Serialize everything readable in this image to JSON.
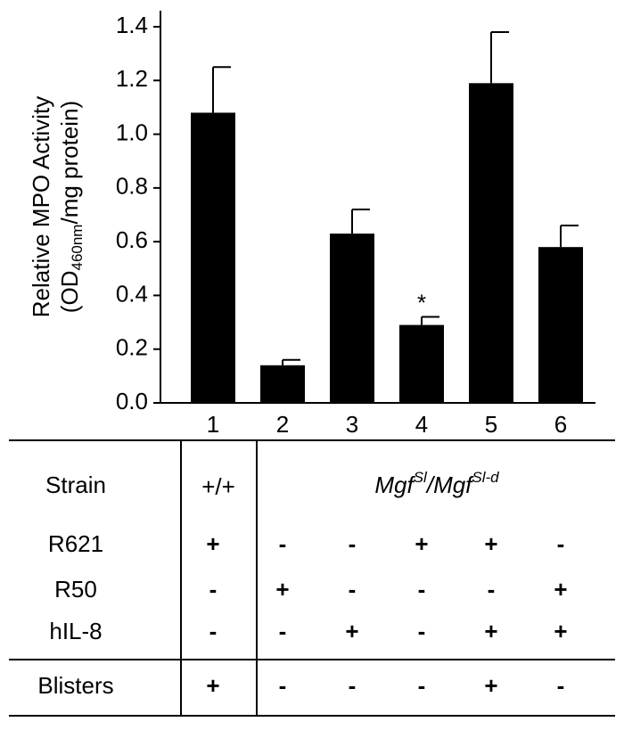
{
  "chart_data": {
    "type": "bar",
    "y_label": {
      "line1": "Relative MPO Activity",
      "line2_prefix": "(OD",
      "line2_sub": "460nm",
      "line2_suffix": "/mg protein)"
    },
    "categories": [
      "1",
      "2",
      "3",
      "4",
      "5",
      "6"
    ],
    "values": [
      1.08,
      0.14,
      0.63,
      0.29,
      1.19,
      0.58
    ],
    "errors": [
      0.17,
      0.02,
      0.09,
      0.03,
      0.19,
      0.08
    ],
    "color": "#000000",
    "annotation": "*",
    "ylim": [
      0,
      1.4
    ],
    "yticks": [
      {
        "value": 0,
        "label": "0.0"
      },
      0.2,
      0.4,
      0.6,
      0.8,
      {
        "value": 1,
        "label": "1.0"
      },
      1.2,
      1.4
    ]
  },
  "table": {
    "strain_label": "Strain",
    "wild_type": "+/+",
    "mutant": {
      "base": "Mgf",
      "sup": "Sl",
      "sep": "/",
      "base2": "Mgf",
      "sup2": "Sl-d"
    },
    "rows": [
      [
        "R621",
        "+",
        "-",
        "-",
        "+",
        "+",
        "-"
      ],
      [
        "R50",
        "-",
        "+",
        "-",
        "-",
        "-",
        "+"
      ],
      [
        "hIL-8",
        "-",
        "-",
        "+",
        "-",
        "+",
        "+"
      ]
    ],
    "blisters": [
      "Blisters",
      "+",
      "-",
      "-",
      "-",
      "+",
      "-"
    ]
  }
}
